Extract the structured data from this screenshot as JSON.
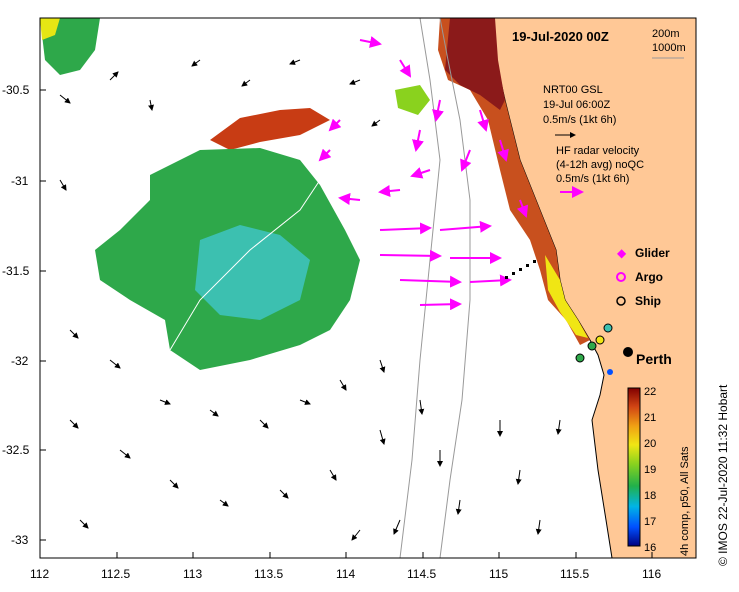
{
  "map": {
    "title": "19-Jul-2020 00Z",
    "bathy_contours": [
      "200m",
      "1000m"
    ],
    "x_ticks": [
      "112",
      "112.5",
      "113",
      "113.5",
      "114",
      "114.5",
      "115",
      "115.5",
      "116"
    ],
    "y_ticks": [
      "-30.5",
      "-31",
      "-31.5",
      "-32",
      "-32.5",
      "-33"
    ],
    "nrt_block": {
      "line1": "NRT00 GSL",
      "line2": "19-Jul 06:00Z",
      "line3": "0.5m/s (1kt 6h)"
    },
    "hf_block": {
      "line1": "HF radar velocity",
      "line2": "(4-12h avg) noQC",
      "line3": "0.5m/s (1kt 6h)"
    },
    "legend": [
      {
        "label": "Glider",
        "color": "#ff00ff"
      },
      {
        "label": "Argo",
        "color": "#ff00ff"
      },
      {
        "label": "Ship",
        "color": "#000000"
      }
    ],
    "city": "Perth",
    "colorbar": {
      "ticks": [
        "22",
        "21",
        "20",
        "19",
        "18",
        "17",
        "16"
      ],
      "label": "4h comp, p50, All Sats"
    },
    "credit": "©  IMOS 22-Jul-2020 11:32 Hobart",
    "colors": {
      "land": "#ffc896",
      "hf_arrow": "#ff00ff",
      "sst_warm": "#8b1a1a",
      "sst_mid": "#2ea84a",
      "sst_cool": "#3cc0b0"
    }
  }
}
